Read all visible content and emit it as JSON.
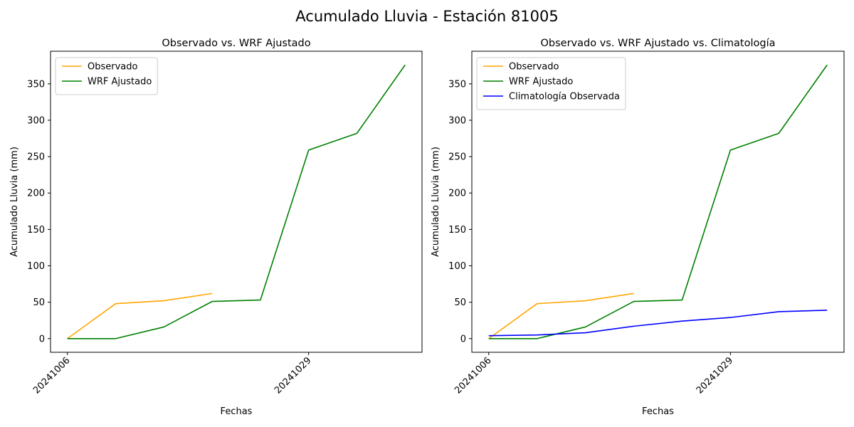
{
  "figure": {
    "suptitle": "Acumulado Lluvia - Estación 81005"
  },
  "colors": {
    "observado": "#ffa500",
    "wrf": "#008000",
    "clima": "#0000ff"
  },
  "chart_data": [
    {
      "type": "line",
      "title": "Observado vs. WRF Ajustado",
      "xlabel": "Fechas",
      "ylabel": "Acumulado Lluvia (mm)",
      "x_tick_labels": [
        "20241006",
        "20241029"
      ],
      "y_ticks": [
        0,
        50,
        100,
        150,
        200,
        250,
        300,
        350
      ],
      "ylim": [
        -18.8,
        394.8
      ],
      "legend_position": "top-left",
      "series": [
        {
          "name": "Observado",
          "color": "#ffa500",
          "x": [
            0,
            1,
            2,
            3
          ],
          "y": [
            0,
            48,
            52,
            62
          ]
        },
        {
          "name": "WRF Ajustado",
          "color": "#008000",
          "x": [
            0,
            1,
            2,
            3,
            4,
            5,
            6,
            7
          ],
          "y": [
            0,
            0,
            16,
            51,
            53,
            259,
            282,
            376
          ]
        }
      ]
    },
    {
      "type": "line",
      "title": "Observado vs. WRF Ajustado vs. Climatología",
      "xlabel": "Fechas",
      "ylabel": "Acumulado Lluvia (mm)",
      "x_tick_labels": [
        "20241006",
        "20241029"
      ],
      "y_ticks": [
        0,
        50,
        100,
        150,
        200,
        250,
        300,
        350
      ],
      "ylim": [
        -18.8,
        394.8
      ],
      "legend_position": "top-left",
      "series": [
        {
          "name": "Observado",
          "color": "#ffa500",
          "x": [
            0,
            1,
            2,
            3
          ],
          "y": [
            0,
            48,
            52,
            62
          ]
        },
        {
          "name": "WRF Ajustado",
          "color": "#008000",
          "x": [
            0,
            1,
            2,
            3,
            4,
            5,
            6,
            7
          ],
          "y": [
            0,
            0,
            16,
            51,
            53,
            259,
            282,
            376
          ]
        },
        {
          "name": "Climatología Observada",
          "color": "#0000ff",
          "x": [
            0,
            1,
            2,
            3,
            4,
            5,
            6,
            7
          ],
          "y": [
            4,
            5,
            8,
            17,
            24,
            29,
            37,
            39
          ]
        }
      ]
    }
  ]
}
